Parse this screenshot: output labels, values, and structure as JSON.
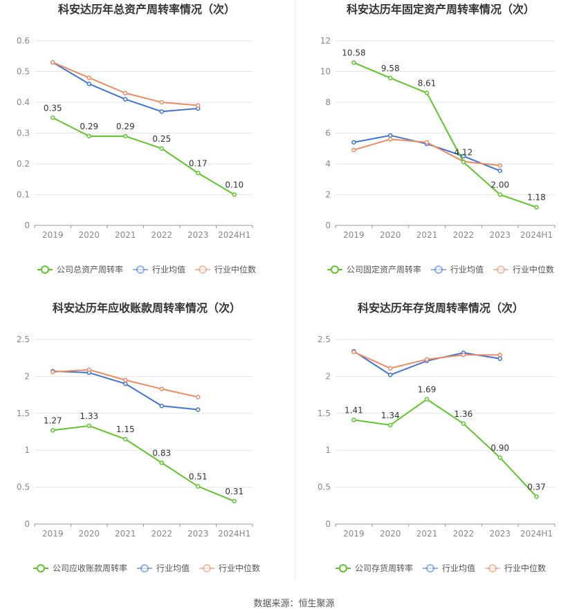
{
  "footer": {
    "source": "数据来源：恒生聚源"
  },
  "colors": {
    "company": "#5cc72a",
    "avg": "#3e73d8",
    "median": "#ef8a62"
  },
  "chart_data": [
    {
      "type": "line",
      "title": "科安达历年总资产周转率情况（次）",
      "categories": [
        "2019",
        "2020",
        "2021",
        "2022",
        "2023",
        "2024H1"
      ],
      "ylim": [
        0,
        0.6
      ],
      "yticks": [
        "0",
        "0.1",
        "0.2",
        "0.3",
        "0.4",
        "0.5",
        "0.6"
      ],
      "series": [
        {
          "name": "公司总资产周转率",
          "values": [
            0.35,
            0.29,
            0.29,
            0.25,
            0.17,
            0.1
          ],
          "labels": [
            "0.35",
            "0.29",
            "0.29",
            "0.25",
            "0.17",
            "0.10"
          ]
        },
        {
          "name": "行业均值",
          "values": [
            0.53,
            0.46,
            0.41,
            0.37,
            0.38,
            null
          ]
        },
        {
          "name": "行业中位数",
          "values": [
            0.53,
            0.48,
            0.43,
            0.4,
            0.39,
            null
          ]
        }
      ]
    },
    {
      "type": "line",
      "title": "科安达历年固定资产周转率情况（次）",
      "categories": [
        "2019",
        "2020",
        "2021",
        "2022",
        "2023",
        "2024H1"
      ],
      "ylim": [
        0,
        12
      ],
      "yticks": [
        "0",
        "2",
        "4",
        "6",
        "8",
        "10",
        "12"
      ],
      "series": [
        {
          "name": "公司固定资产周转率",
          "values": [
            10.58,
            9.58,
            8.61,
            4.12,
            2.0,
            1.18
          ],
          "labels": [
            "10.58",
            "9.58",
            "8.61",
            "4.12",
            "2.00",
            "1.18"
          ]
        },
        {
          "name": "行业均值",
          "values": [
            5.4,
            5.85,
            5.3,
            4.5,
            3.55,
            null
          ]
        },
        {
          "name": "行业中位数",
          "values": [
            4.9,
            5.6,
            5.4,
            4.15,
            3.9,
            null
          ]
        }
      ]
    },
    {
      "type": "line",
      "title": "科安达历年应收账款周转率情况（次）",
      "categories": [
        "2019",
        "2020",
        "2021",
        "2022",
        "2023",
        "2024H1"
      ],
      "ylim": [
        0,
        2.5
      ],
      "yticks": [
        "0",
        "0.5",
        "1",
        "1.5",
        "2",
        "2.5"
      ],
      "series": [
        {
          "name": "公司应收账款周转率",
          "values": [
            1.27,
            1.33,
            1.15,
            0.83,
            0.51,
            0.31
          ],
          "labels": [
            "1.27",
            "1.33",
            "1.15",
            "0.83",
            "0.51",
            "0.31"
          ]
        },
        {
          "name": "行业均值",
          "values": [
            2.07,
            2.05,
            1.9,
            1.6,
            1.55,
            null
          ]
        },
        {
          "name": "行业中位数",
          "values": [
            2.06,
            2.09,
            1.95,
            1.83,
            1.72,
            null
          ]
        }
      ]
    },
    {
      "type": "line",
      "title": "科安达历年存货周转率情况（次）",
      "categories": [
        "2019",
        "2020",
        "2021",
        "2022",
        "2023",
        "2024H1"
      ],
      "ylim": [
        0,
        2.5
      ],
      "yticks": [
        "0",
        "0.5",
        "1",
        "1.5",
        "2",
        "2.5"
      ],
      "series": [
        {
          "name": "公司存货周转率",
          "values": [
            1.41,
            1.34,
            1.69,
            1.36,
            0.9,
            0.37
          ],
          "labels": [
            "1.41",
            "1.34",
            "1.69",
            "1.36",
            "0.90",
            "0.37"
          ]
        },
        {
          "name": "行业均值",
          "values": [
            2.34,
            2.02,
            2.21,
            2.32,
            2.24,
            null
          ]
        },
        {
          "name": "行业中位数",
          "values": [
            2.33,
            2.11,
            2.23,
            2.29,
            2.29,
            null
          ]
        }
      ]
    }
  ]
}
